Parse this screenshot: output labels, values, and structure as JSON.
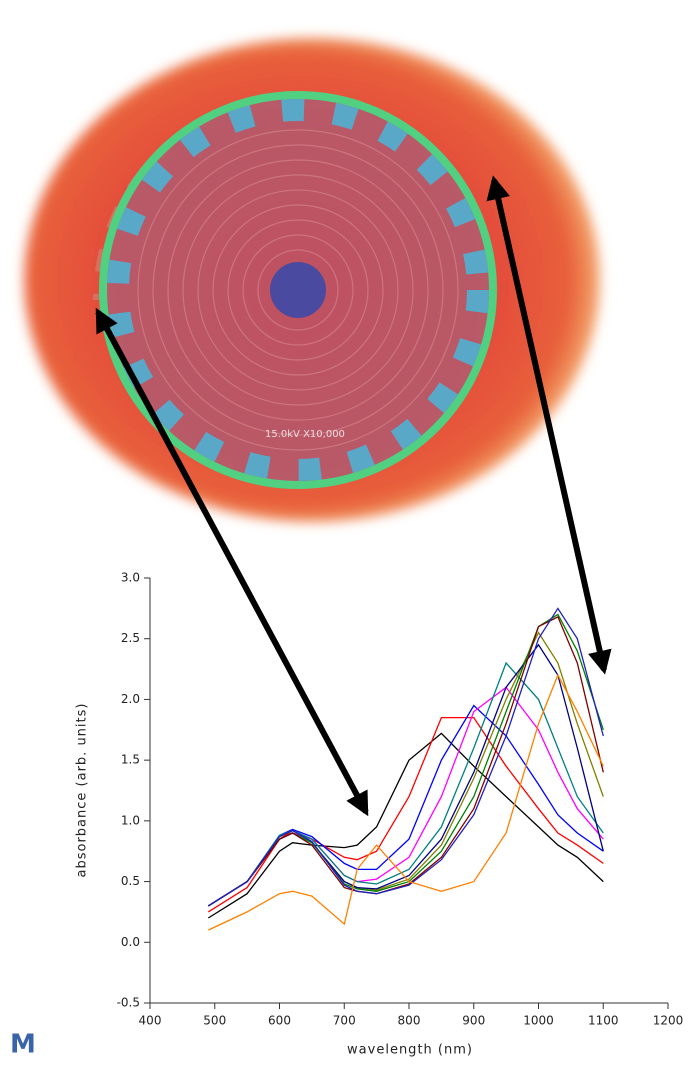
{
  "image": {
    "caption": "15.0kV  X10,000"
  },
  "logo": "M",
  "chart_data": {
    "type": "line",
    "xlabel": "wavelength (nm)",
    "ylabel": "absorbance (arb. units)",
    "x": [
      490,
      550,
      600,
      620,
      650,
      700,
      720,
      750,
      800,
      850,
      900,
      950,
      1000,
      1030,
      1060,
      1100
    ],
    "xlim": [
      400,
      1200
    ],
    "xticks": [
      400,
      500,
      600,
      700,
      800,
      900,
      1000,
      1100,
      1200
    ],
    "ylim": [
      -0.5,
      3
    ],
    "yticks": [
      -0.5,
      {
        "value": 0,
        "label": "0.0"
      },
      0.5,
      {
        "value": 1,
        "label": "1.0"
      },
      1.5,
      {
        "value": 2,
        "label": "2.0"
      },
      2.5,
      {
        "value": 3,
        "label": "3.0"
      }
    ],
    "grid": false,
    "series": [
      {
        "color": "#000000",
        "values": [
          0.2,
          0.4,
          0.75,
          0.82,
          0.8,
          0.78,
          0.8,
          0.95,
          1.5,
          1.72,
          1.45,
          1.2,
          0.95,
          0.8,
          0.7,
          0.5
        ]
      },
      {
        "color": "#ff0000",
        "values": [
          0.25,
          0.45,
          0.85,
          0.92,
          0.85,
          0.7,
          0.68,
          0.75,
          1.2,
          1.85,
          1.85,
          1.45,
          1.1,
          0.9,
          0.8,
          0.65
        ]
      },
      {
        "color": "#0000ff",
        "values": [
          0.3,
          0.5,
          0.88,
          0.93,
          0.87,
          0.65,
          0.6,
          0.6,
          0.85,
          1.5,
          1.95,
          1.7,
          1.3,
          1.05,
          0.9,
          0.75
        ]
      },
      {
        "color": "#ff00ff",
        "values": [
          0.3,
          0.5,
          0.85,
          0.9,
          0.85,
          0.55,
          0.5,
          0.52,
          0.7,
          1.2,
          1.9,
          2.1,
          1.75,
          1.4,
          1.1,
          0.85
        ]
      },
      {
        "color": "#008080",
        "values": [
          0.3,
          0.5,
          0.88,
          0.92,
          0.85,
          0.55,
          0.5,
          0.48,
          0.6,
          0.95,
          1.6,
          2.3,
          2.0,
          1.6,
          1.2,
          0.9
        ]
      },
      {
        "color": "#808000",
        "values": [
          0.3,
          0.5,
          0.85,
          0.9,
          0.82,
          0.5,
          0.45,
          0.43,
          0.52,
          0.8,
          1.35,
          2.0,
          2.55,
          2.3,
          1.8,
          1.2
        ]
      },
      {
        "color": "#000080",
        "values": [
          0.3,
          0.5,
          0.85,
          0.9,
          0.82,
          0.5,
          0.45,
          0.44,
          0.55,
          0.85,
          1.4,
          2.1,
          2.45,
          2.2,
          1.6,
          0.75
        ]
      },
      {
        "color": "#008000",
        "values": [
          0.3,
          0.5,
          0.85,
          0.9,
          0.82,
          0.48,
          0.44,
          0.42,
          0.5,
          0.75,
          1.2,
          1.9,
          2.6,
          2.7,
          2.4,
          1.75
        ]
      },
      {
        "color": "#800000",
        "values": [
          0.3,
          0.5,
          0.85,
          0.9,
          0.8,
          0.45,
          0.42,
          0.4,
          0.48,
          0.7,
          1.1,
          1.8,
          2.6,
          2.68,
          2.3,
          1.4
        ]
      },
      {
        "color": "#2020c0",
        "values": [
          0.3,
          0.5,
          0.87,
          0.92,
          0.83,
          0.47,
          0.42,
          0.4,
          0.47,
          0.68,
          1.05,
          1.7,
          2.5,
          2.75,
          2.5,
          1.7
        ]
      },
      {
        "color": "#ff8000",
        "values": [
          0.1,
          0.25,
          0.4,
          0.42,
          0.38,
          0.15,
          0.6,
          0.8,
          0.5,
          0.42,
          0.5,
          0.9,
          1.8,
          2.2,
          1.9,
          1.45
        ]
      }
    ]
  }
}
